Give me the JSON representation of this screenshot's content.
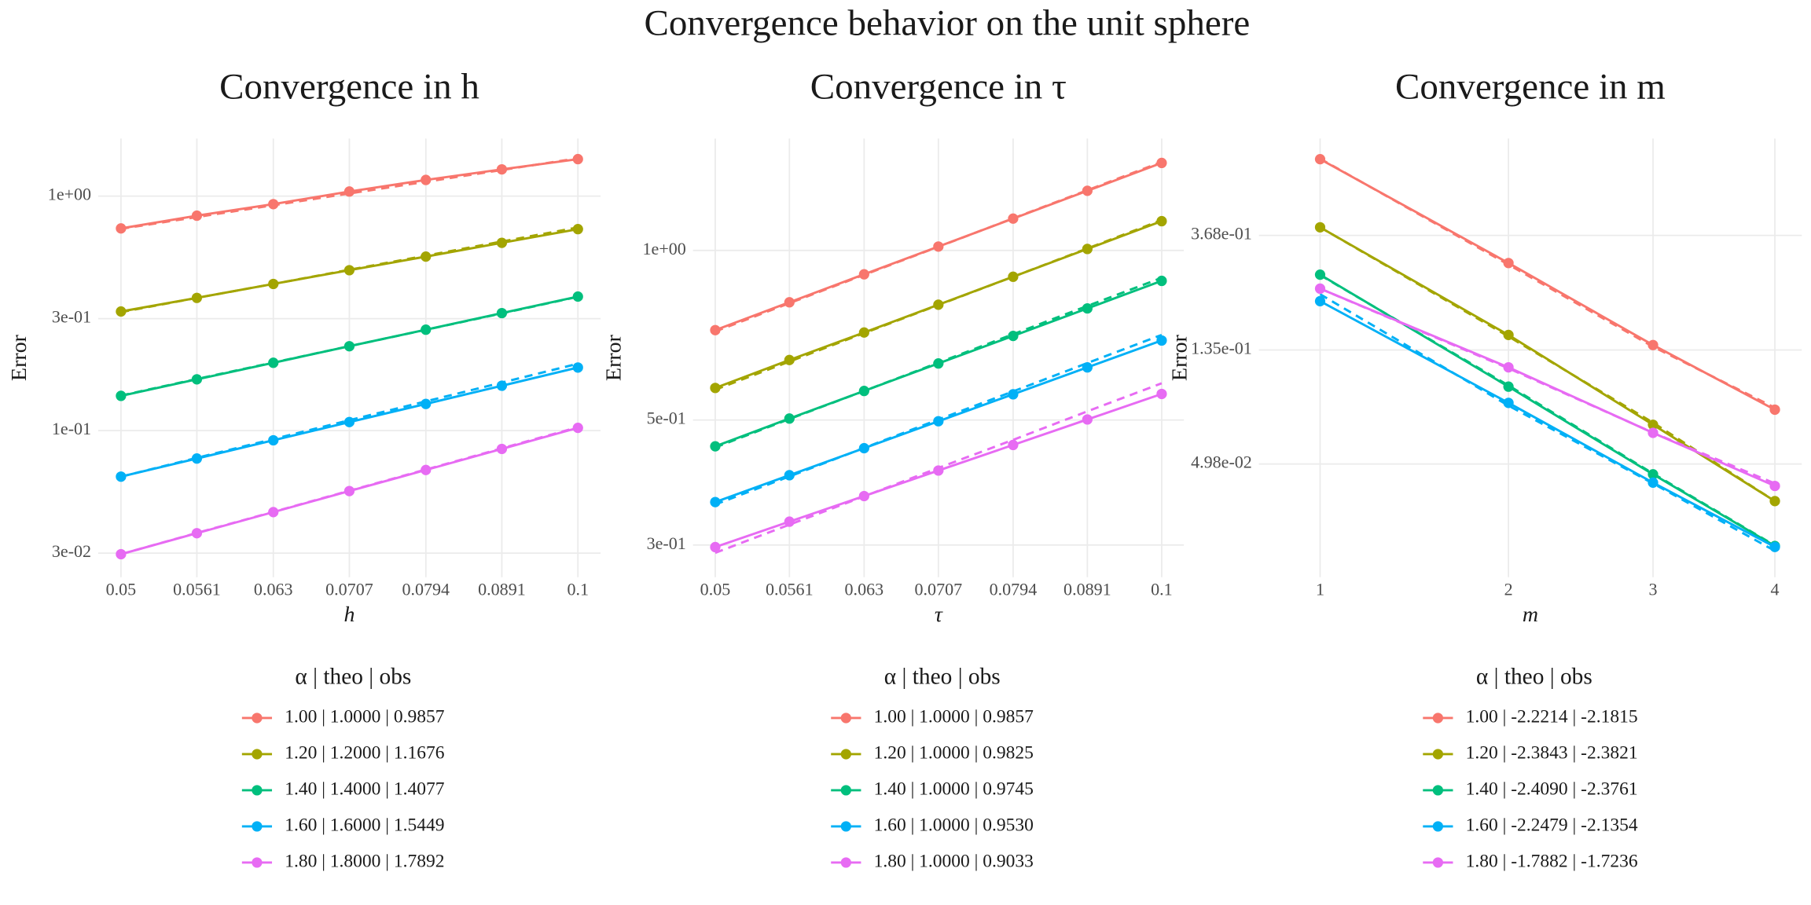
{
  "title": "Convergence behavior on the unit sphere",
  "chart_data": [
    {
      "type": "line",
      "title": "Convergence in h",
      "x_label": "h",
      "y_label": "Error",
      "legend_title": "α  | theo  | obs",
      "xscale": "log",
      "yscale": "log",
      "grid": true,
      "x": [
        0.05,
        0.0561,
        0.063,
        0.0707,
        0.0794,
        0.0891,
        0.1
      ],
      "xlim": [
        0.0483,
        0.1035
      ],
      "xticks": [
        0.05,
        0.0561,
        0.063,
        0.0707,
        0.0794,
        0.0891,
        0.1
      ],
      "ylim": [
        0.0237,
        1.76
      ],
      "yticks": [
        {
          "value": 0.03,
          "label": "3e-02"
        },
        {
          "value": 0.1,
          "label": "1e-01"
        },
        {
          "value": 0.3,
          "label": "3e-01"
        },
        {
          "value": 1,
          "label": "1e+00"
        }
      ],
      "series": [
        {
          "name": "1.00 | 1.0000 | 0.9857",
          "color": "#F8766D",
          "values": [
            0.728,
            0.825,
            0.924,
            1.046,
            1.172,
            1.3,
            1.438
          ],
          "reference_values": [
            0.725,
            0.814,
            0.914,
            1.026,
            1.151,
            1.292,
            1.45
          ]
        },
        {
          "name": "1.20 | 1.2000 | 1.1676",
          "color": "#A3A500",
          "values": [
            0.322,
            0.368,
            0.422,
            0.483,
            0.552,
            0.632,
            0.723
          ],
          "reference_values": [
            0.32,
            0.368,
            0.422,
            0.485,
            0.557,
            0.64,
            0.735
          ]
        },
        {
          "name": "1.40 | 1.4000 | 1.4077",
          "color": "#00BF7D",
          "values": [
            0.1406,
            0.1654,
            0.1946,
            0.2289,
            0.2693,
            0.3169,
            0.3728
          ],
          "reference_values": [
            0.141,
            0.166,
            0.195,
            0.229,
            0.269,
            0.316,
            0.372
          ]
        },
        {
          "name": "1.60 | 1.6000 | 1.5449",
          "color": "#00B0F6",
          "values": [
            0.0636,
            0.076,
            0.0909,
            0.1087,
            0.1299,
            0.1553,
            0.1857
          ],
          "reference_values": [
            0.0636,
            0.0765,
            0.092,
            0.1107,
            0.1332,
            0.1602,
            0.1928
          ]
        },
        {
          "name": "1.80 | 1.8000 | 1.7892",
          "color": "#E76BF3",
          "values": [
            0.0297,
            0.0365,
            0.0449,
            0.0552,
            0.0679,
            0.0835,
            0.1027
          ],
          "reference_values": [
            0.0297,
            0.0366,
            0.045,
            0.0554,
            0.0682,
            0.084,
            0.1034
          ]
        }
      ]
    },
    {
      "type": "line",
      "title": "Convergence in τ",
      "x_label": "τ",
      "y_label": "Error",
      "legend_title": "α  | theo  | obs",
      "xscale": "log",
      "yscale": "log",
      "grid": true,
      "x": [
        0.05,
        0.0561,
        0.063,
        0.0707,
        0.0794,
        0.0891,
        0.1
      ],
      "xlim": [
        0.0483,
        0.1035
      ],
      "xticks": [
        0.05,
        0.0561,
        0.063,
        0.0707,
        0.0794,
        0.0891,
        0.1
      ],
      "ylim": [
        0.263,
        1.58
      ],
      "yticks": [
        {
          "value": 0.3,
          "label": "3e-01"
        },
        {
          "value": 0.5,
          "label": "5e-01"
        },
        {
          "value": 1,
          "label": "1e+00"
        }
      ],
      "series": [
        {
          "name": "1.00 | 1.0000 | 0.9857",
          "color": "#F8766D",
          "values": [
            0.722,
            0.809,
            0.907,
            1.016,
            1.139,
            1.276,
            1.43
          ],
          "reference_values": [
            0.718,
            0.806,
            0.905,
            1.015,
            1.14,
            1.279,
            1.436
          ]
        },
        {
          "name": "1.20 | 1.0000 | 0.9825",
          "color": "#A3A500",
          "values": [
            0.57,
            0.639,
            0.715,
            0.801,
            0.898,
            1.006,
            1.127
          ],
          "reference_values": [
            0.566,
            0.635,
            0.713,
            0.8,
            0.898,
            1.008,
            1.132
          ]
        },
        {
          "name": "1.40 | 1.0000 | 0.9745",
          "color": "#00BF7D",
          "values": [
            0.449,
            0.503,
            0.563,
            0.63,
            0.705,
            0.789,
            0.883
          ],
          "reference_values": [
            0.447,
            0.502,
            0.563,
            0.632,
            0.71,
            0.797,
            0.894
          ]
        },
        {
          "name": "1.60 | 1.0000 | 0.9530",
          "color": "#00B0F6",
          "values": [
            0.3575,
            0.399,
            0.4456,
            0.4975,
            0.5554,
            0.62,
            0.692
          ],
          "reference_values": [
            0.354,
            0.397,
            0.446,
            0.501,
            0.562,
            0.631,
            0.708
          ]
        },
        {
          "name": "1.80 | 1.0000 | 0.9033",
          "color": "#E76BF3",
          "values": [
            0.2974,
            0.33,
            0.3664,
            0.4067,
            0.4515,
            0.5011,
            0.5562
          ],
          "reference_values": [
            0.2905,
            0.326,
            0.366,
            0.411,
            0.461,
            0.518,
            0.581
          ]
        }
      ]
    },
    {
      "type": "line",
      "title": "Convergence in m",
      "x_label": "m",
      "y_label": "Error",
      "legend_title": "α  | theo  | obs",
      "xscale": "sqrt",
      "yscale": "log",
      "grid": true,
      "x": [
        1,
        2,
        3,
        4
      ],
      "xlim": [
        0.749,
        4.24
      ],
      "xticks": [
        1,
        2,
        3,
        4
      ],
      "ylim": [
        0.0185,
        0.859
      ],
      "yticks": [
        {
          "value": 0.0498,
          "label": "4.98e-02"
        },
        {
          "value": 0.135,
          "label": "1.35e-01"
        },
        {
          "value": 0.368,
          "label": "3.68e-01"
        }
      ],
      "series": [
        {
          "name": "1.00 | -2.2214 | -2.1815",
          "color": "#F8766D",
          "values": [
            0.717,
            0.289,
            0.141,
            0.0801
          ],
          "reference_values": [
            0.72,
            0.285,
            0.139,
            0.0815
          ]
        },
        {
          "name": "1.20 | -2.3843 | -2.3821",
          "color": "#A3A500",
          "values": [
            0.395,
            0.154,
            0.0702,
            0.036
          ],
          "reference_values": [
            0.395,
            0.152,
            0.0715,
            0.036
          ]
        },
        {
          "name": "1.40 | -2.4090 | -2.3761",
          "color": "#00BF7D",
          "values": [
            0.261,
            0.098,
            0.0455,
            0.0243
          ],
          "reference_values": [
            0.26,
            0.099,
            0.0458,
            0.0244
          ]
        },
        {
          "name": "1.60 | -2.2479 | -2.1354",
          "color": "#00B0F6",
          "values": [
            0.207,
            0.085,
            0.0423,
            0.0241
          ],
          "reference_values": [
            0.22,
            0.083,
            0.042,
            0.0233
          ]
        },
        {
          "name": "1.80 | -1.7882 | -1.7236",
          "color": "#E76BF3",
          "values": [
            0.231,
            0.116,
            0.0654,
            0.0411
          ],
          "reference_values": [
            0.231,
            0.115,
            0.0655,
            0.042
          ]
        }
      ]
    }
  ]
}
